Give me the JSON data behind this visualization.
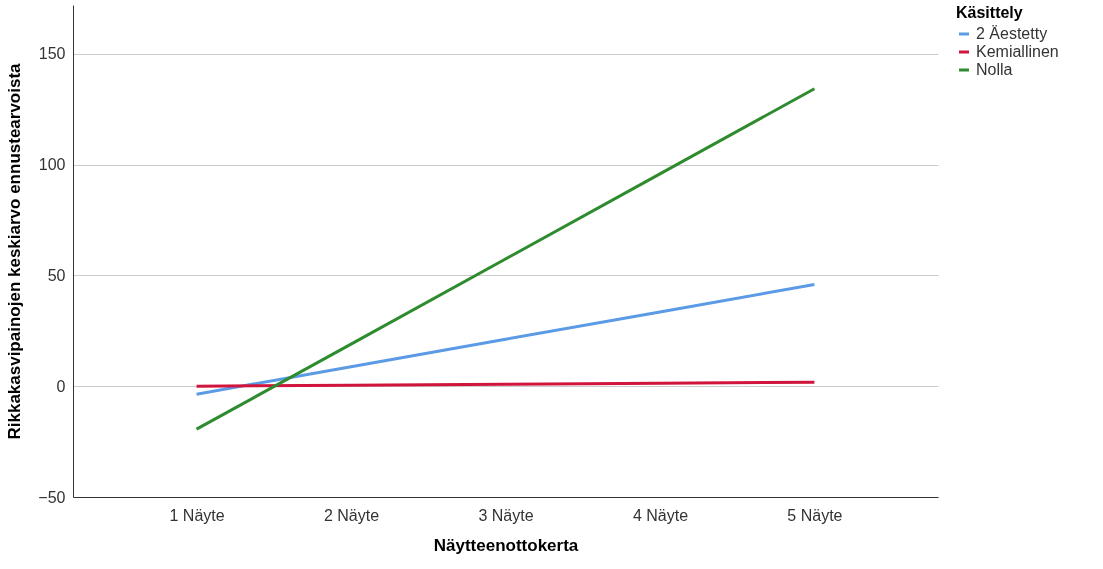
{
  "chart_data": {
    "type": "line",
    "xlabel": "Näytteenottokerta",
    "ylabel": "Rikkakasvipainojen keskiarvo ennustearvoista",
    "legend_title": "Käsittely",
    "categories": [
      "1 Näyte",
      "2 Näyte",
      "3 Näyte",
      "4 Näyte",
      "5 Näyte"
    ],
    "series": [
      {
        "name": "2 Äestetty",
        "color": "#5b9be6",
        "values": [
          -3.6,
          8.8,
          21.2,
          33.5,
          45.9
        ]
      },
      {
        "name": "Kemiallinen",
        "color": "#d0143c",
        "values": [
          0,
          0.45,
          0.9,
          1.35,
          1.8
        ]
      },
      {
        "name": "Nolla",
        "color": "#2e8b2e",
        "values": [
          -19.4,
          19,
          57.4,
          95.8,
          134.2
        ]
      }
    ],
    "ylim": [
      -50,
      172
    ],
    "yticks": [
      -50,
      0,
      50,
      100,
      150
    ],
    "grid": "y",
    "legend": "top right",
    "marker": "none",
    "line_style": "solid"
  }
}
